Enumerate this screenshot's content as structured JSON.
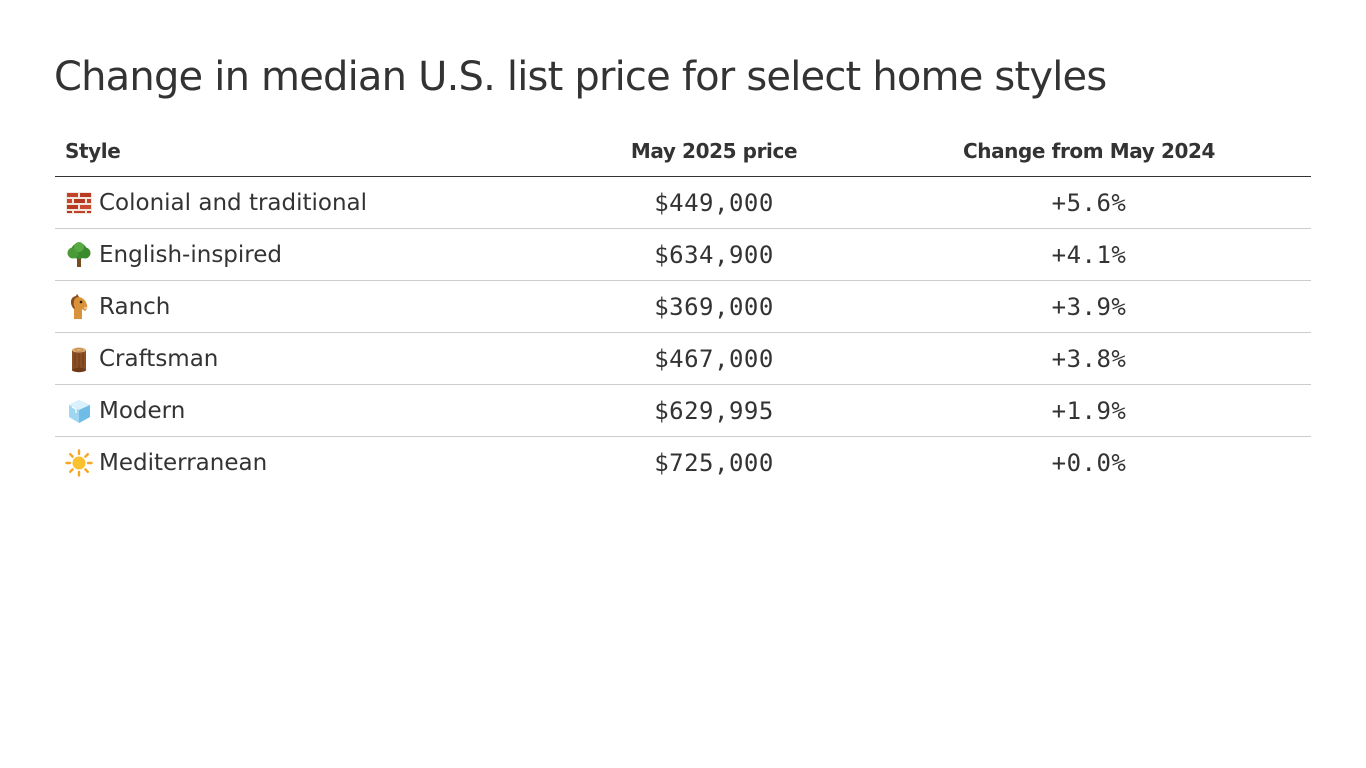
{
  "chart_data": {
    "type": "table",
    "title": "Change in median U.S. list price for select home styles",
    "columns": [
      "Style",
      "May 2025 price",
      "Change from May 2024"
    ],
    "rows": [
      {
        "icon": "brick-icon",
        "style": "Colonial and traditional",
        "price": "$449,000",
        "change": "+5.6%"
      },
      {
        "icon": "tree-icon",
        "style": "English-inspired",
        "price": "$634,900",
        "change": "+4.1%"
      },
      {
        "icon": "horse-icon",
        "style": "Ranch",
        "price": "$369,000",
        "change": "+3.9%"
      },
      {
        "icon": "wood-icon",
        "style": "Craftsman",
        "price": "$467,000",
        "change": "+3.8%"
      },
      {
        "icon": "ice-cube-icon",
        "style": "Modern",
        "price": "$629,995",
        "change": "+1.9%"
      },
      {
        "icon": "sun-icon",
        "style": "Mediterranean",
        "price": "$725,000",
        "change": "+0.0%"
      }
    ]
  }
}
